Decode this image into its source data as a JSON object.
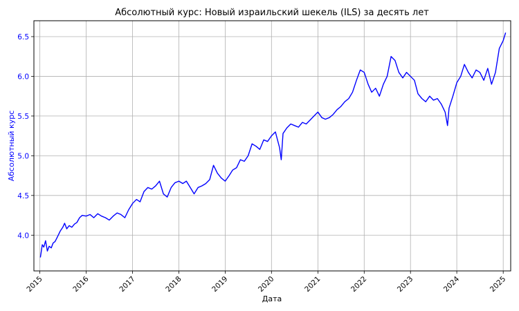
{
  "chart_data": {
    "type": "line",
    "title": "Абсолютный курс: Новый израильский шекель (ILS) за десять лет",
    "xlabel": "Дата",
    "ylabel": "Абсолютный курс",
    "x_ticks": [
      "2015",
      "2016",
      "2017",
      "2018",
      "2019",
      "2020",
      "2021",
      "2022",
      "2023",
      "2024",
      "2025"
    ],
    "y_ticks": [
      "4.0",
      "4.5",
      "5.0",
      "5.5",
      "6.0",
      "6.5"
    ],
    "xlim": [
      "2014-11-15",
      "2025-03-01"
    ],
    "ylim": [
      3.55,
      6.7
    ],
    "grid": true,
    "colors": {
      "line": "#0000ff",
      "ylabel": "#0000ff",
      "yticks": "#0000ff",
      "grid": "#b0b0b0"
    },
    "series": [
      {
        "color": "#0000ff",
        "points": [
          [
            "2015-01-05",
            3.72
          ],
          [
            "2015-01-20",
            3.88
          ],
          [
            "2015-02-01",
            3.85
          ],
          [
            "2015-02-15",
            3.93
          ],
          [
            "2015-03-01",
            3.8
          ],
          [
            "2015-03-15",
            3.86
          ],
          [
            "2015-04-01",
            3.84
          ],
          [
            "2015-04-15",
            3.9
          ],
          [
            "2015-05-01",
            3.92
          ],
          [
            "2015-05-20",
            3.98
          ],
          [
            "2015-06-10",
            4.05
          ],
          [
            "2015-07-01",
            4.1
          ],
          [
            "2015-07-15",
            4.15
          ],
          [
            "2015-08-01",
            4.08
          ],
          [
            "2015-08-20",
            4.12
          ],
          [
            "2015-09-10",
            4.1
          ],
          [
            "2015-10-01",
            4.14
          ],
          [
            "2015-10-20",
            4.16
          ],
          [
            "2015-11-10",
            4.22
          ],
          [
            "2015-12-01",
            4.25
          ],
          [
            "2016-01-01",
            4.24
          ],
          [
            "2016-02-01",
            4.26
          ],
          [
            "2016-03-01",
            4.22
          ],
          [
            "2016-04-01",
            4.27
          ],
          [
            "2016-05-01",
            4.24
          ],
          [
            "2016-06-01",
            4.22
          ],
          [
            "2016-07-01",
            4.19
          ],
          [
            "2016-08-01",
            4.24
          ],
          [
            "2016-09-01",
            4.28
          ],
          [
            "2016-10-01",
            4.26
          ],
          [
            "2016-11-01",
            4.22
          ],
          [
            "2016-12-01",
            4.32
          ],
          [
            "2017-01-01",
            4.4
          ],
          [
            "2017-02-01",
            4.45
          ],
          [
            "2017-03-01",
            4.42
          ],
          [
            "2017-04-01",
            4.55
          ],
          [
            "2017-05-01",
            4.6
          ],
          [
            "2017-06-01",
            4.58
          ],
          [
            "2017-07-01",
            4.62
          ],
          [
            "2017-08-01",
            4.68
          ],
          [
            "2017-09-01",
            4.52
          ],
          [
            "2017-10-01",
            4.48
          ],
          [
            "2017-11-01",
            4.6
          ],
          [
            "2017-12-01",
            4.66
          ],
          [
            "2018-01-01",
            4.68
          ],
          [
            "2018-02-01",
            4.65
          ],
          [
            "2018-03-01",
            4.68
          ],
          [
            "2018-04-01",
            4.6
          ],
          [
            "2018-05-01",
            4.52
          ],
          [
            "2018-06-01",
            4.6
          ],
          [
            "2018-07-01",
            4.62
          ],
          [
            "2018-08-01",
            4.65
          ],
          [
            "2018-09-01",
            4.7
          ],
          [
            "2018-10-01",
            4.88
          ],
          [
            "2018-11-01",
            4.78
          ],
          [
            "2018-12-01",
            4.72
          ],
          [
            "2019-01-01",
            4.68
          ],
          [
            "2019-02-01",
            4.75
          ],
          [
            "2019-03-01",
            4.82
          ],
          [
            "2019-04-01",
            4.85
          ],
          [
            "2019-05-01",
            4.95
          ],
          [
            "2019-06-01",
            4.93
          ],
          [
            "2019-07-01",
            5.0
          ],
          [
            "2019-08-01",
            5.15
          ],
          [
            "2019-09-01",
            5.12
          ],
          [
            "2019-10-01",
            5.08
          ],
          [
            "2019-11-01",
            5.2
          ],
          [
            "2019-12-01",
            5.18
          ],
          [
            "2020-01-01",
            5.25
          ],
          [
            "2020-02-01",
            5.3
          ],
          [
            "2020-03-05",
            5.1
          ],
          [
            "2020-03-18",
            4.95
          ],
          [
            "2020-04-01",
            5.28
          ],
          [
            "2020-05-01",
            5.35
          ],
          [
            "2020-06-01",
            5.4
          ],
          [
            "2020-07-01",
            5.38
          ],
          [
            "2020-08-01",
            5.36
          ],
          [
            "2020-09-01",
            5.42
          ],
          [
            "2020-10-01",
            5.4
          ],
          [
            "2020-11-01",
            5.45
          ],
          [
            "2020-12-01",
            5.5
          ],
          [
            "2021-01-01",
            5.55
          ],
          [
            "2021-02-01",
            5.48
          ],
          [
            "2021-03-01",
            5.46
          ],
          [
            "2021-04-01",
            5.48
          ],
          [
            "2021-05-01",
            5.52
          ],
          [
            "2021-06-01",
            5.58
          ],
          [
            "2021-07-01",
            5.62
          ],
          [
            "2021-08-01",
            5.68
          ],
          [
            "2021-09-01",
            5.72
          ],
          [
            "2021-10-01",
            5.8
          ],
          [
            "2021-11-01",
            5.95
          ],
          [
            "2021-12-01",
            6.08
          ],
          [
            "2022-01-01",
            6.05
          ],
          [
            "2022-02-01",
            5.9
          ],
          [
            "2022-03-01",
            5.8
          ],
          [
            "2022-04-01",
            5.85
          ],
          [
            "2022-05-01",
            5.75
          ],
          [
            "2022-06-01",
            5.9
          ],
          [
            "2022-07-01",
            6.0
          ],
          [
            "2022-08-01",
            6.25
          ],
          [
            "2022-09-01",
            6.2
          ],
          [
            "2022-10-01",
            6.05
          ],
          [
            "2022-11-01",
            5.98
          ],
          [
            "2022-12-01",
            6.05
          ],
          [
            "2023-01-01",
            6.0
          ],
          [
            "2023-02-01",
            5.95
          ],
          [
            "2023-03-01",
            5.78
          ],
          [
            "2023-04-01",
            5.72
          ],
          [
            "2023-05-01",
            5.68
          ],
          [
            "2023-06-01",
            5.75
          ],
          [
            "2023-07-01",
            5.7
          ],
          [
            "2023-08-01",
            5.72
          ],
          [
            "2023-09-01",
            5.65
          ],
          [
            "2023-10-01",
            5.55
          ],
          [
            "2023-10-20",
            5.38
          ],
          [
            "2023-11-01",
            5.6
          ],
          [
            "2023-12-01",
            5.75
          ],
          [
            "2024-01-01",
            5.92
          ],
          [
            "2024-02-01",
            6.0
          ],
          [
            "2024-03-01",
            6.15
          ],
          [
            "2024-04-01",
            6.05
          ],
          [
            "2024-05-01",
            5.98
          ],
          [
            "2024-06-01",
            6.08
          ],
          [
            "2024-07-01",
            6.05
          ],
          [
            "2024-08-01",
            5.95
          ],
          [
            "2024-09-01",
            6.1
          ],
          [
            "2024-10-01",
            5.9
          ],
          [
            "2024-11-01",
            6.05
          ],
          [
            "2024-12-01",
            6.35
          ],
          [
            "2025-01-01",
            6.45
          ],
          [
            "2025-01-20",
            6.55
          ]
        ]
      }
    ]
  }
}
